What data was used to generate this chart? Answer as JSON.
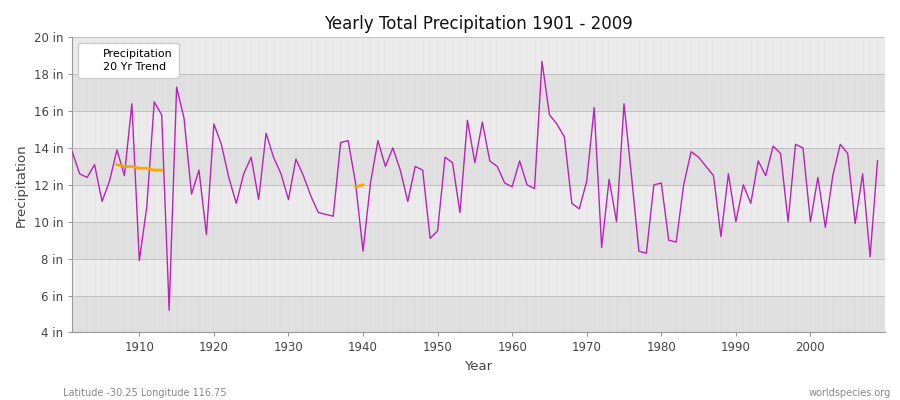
{
  "title": "Yearly Total Precipitation 1901 - 2009",
  "xlabel": "Year",
  "ylabel": "Precipitation",
  "lat_lon_label": "Latitude -30.25 Longitude 116.75",
  "watermark": "worldspecies.org",
  "ylim": [
    4,
    20
  ],
  "yticks": [
    4,
    6,
    8,
    10,
    12,
    14,
    16,
    18,
    20
  ],
  "ytick_labels": [
    "4 in",
    "6 in",
    "8 in",
    "10 in",
    "12 in",
    "14 in",
    "16 in",
    "18 in",
    "20 in"
  ],
  "xlim": [
    1901,
    2010
  ],
  "xticks": [
    1910,
    1920,
    1930,
    1940,
    1950,
    1960,
    1970,
    1980,
    1990,
    2000
  ],
  "precip_color": "#bb22bb",
  "trend_color": "#ffa500",
  "bg_color": "#ffffff",
  "plot_bg_color": "#f0f0f0",
  "band_color_light": "#e8e8e8",
  "band_color_dark": "#d8d8d8",
  "years": [
    1901,
    1902,
    1903,
    1904,
    1905,
    1906,
    1907,
    1908,
    1909,
    1910,
    1911,
    1912,
    1913,
    1914,
    1915,
    1916,
    1917,
    1918,
    1919,
    1920,
    1921,
    1922,
    1923,
    1924,
    1925,
    1926,
    1927,
    1928,
    1929,
    1930,
    1931,
    1932,
    1933,
    1934,
    1935,
    1936,
    1937,
    1938,
    1939,
    1940,
    1941,
    1942,
    1943,
    1944,
    1945,
    1946,
    1947,
    1948,
    1949,
    1950,
    1951,
    1952,
    1953,
    1954,
    1955,
    1956,
    1957,
    1958,
    1959,
    1960,
    1961,
    1962,
    1963,
    1964,
    1965,
    1966,
    1967,
    1968,
    1969,
    1970,
    1971,
    1972,
    1973,
    1974,
    1975,
    1976,
    1977,
    1978,
    1979,
    1980,
    1981,
    1982,
    1983,
    1984,
    1985,
    1986,
    1987,
    1988,
    1989,
    1990,
    1991,
    1992,
    1993,
    1994,
    1995,
    1996,
    1997,
    1998,
    1999,
    2000,
    2001,
    2002,
    2003,
    2004,
    2005,
    2006,
    2007,
    2008,
    2009
  ],
  "precip": [
    13.8,
    12.6,
    12.4,
    13.1,
    11.1,
    12.2,
    13.9,
    12.5,
    16.4,
    7.9,
    10.8,
    16.5,
    15.8,
    5.2,
    17.3,
    15.6,
    11.5,
    12.8,
    9.3,
    15.3,
    14.2,
    12.4,
    11.0,
    12.6,
    13.5,
    11.2,
    14.8,
    13.5,
    12.6,
    11.2,
    13.4,
    12.5,
    11.4,
    10.5,
    10.4,
    10.3,
    14.3,
    14.4,
    12.1,
    8.4,
    12.1,
    14.4,
    13.0,
    14.0,
    12.8,
    11.1,
    13.0,
    12.8,
    9.1,
    9.5,
    13.5,
    13.2,
    10.5,
    15.5,
    13.2,
    15.4,
    13.3,
    13.0,
    12.1,
    11.9,
    13.3,
    12.0,
    11.8,
    18.7,
    15.8,
    15.3,
    14.6,
    11.0,
    10.7,
    12.2,
    16.2,
    8.6,
    12.3,
    10.0,
    16.4,
    12.5,
    8.4,
    8.3,
    12.0,
    12.1,
    9.0,
    8.9,
    12.0,
    13.8,
    13.5,
    13.0,
    12.5,
    9.2,
    12.6,
    10.0,
    12.0,
    11.0,
    13.3,
    12.5,
    14.1,
    13.7,
    10.0,
    14.2,
    14.0,
    10.0,
    12.4,
    9.7,
    12.5,
    14.2,
    13.7,
    9.9,
    12.6,
    8.1,
    13.3
  ],
  "trend_years_1": [
    1907,
    1908,
    1909,
    1910,
    1911,
    1912,
    1913
  ],
  "trend_values_1": [
    13.1,
    13.0,
    13.0,
    12.9,
    12.9,
    12.8,
    12.8
  ],
  "trend_years_2": [
    1939,
    1940
  ],
  "trend_values_2": [
    11.9,
    12.0
  ]
}
